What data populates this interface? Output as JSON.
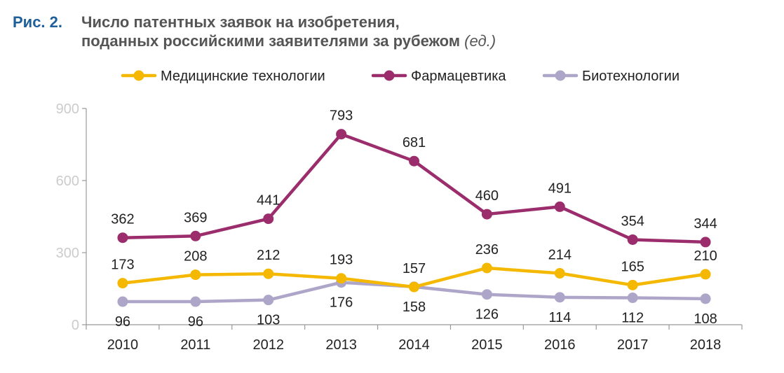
{
  "figure": {
    "number": "Рис. 2.",
    "title_line1": "Число патентных заявок на изобретения,",
    "title_line2": "поданных российскими заявителями за рубежом",
    "unit": "(ед.)"
  },
  "colors": {
    "medical": "#f5b800",
    "pharma": "#9b2d6c",
    "bio": "#aea6c8",
    "axis": "#999999",
    "tick_y": "#cccccc"
  },
  "chart_data": {
    "type": "line",
    "categories": [
      "2010",
      "2011",
      "2012",
      "2013",
      "2014",
      "2015",
      "2016",
      "2017",
      "2018"
    ],
    "ylim": [
      0,
      900
    ],
    "yticks": [
      0,
      300,
      600,
      900
    ],
    "grid": false,
    "legend_position": "top",
    "series": [
      {
        "key": "medical",
        "name": "Медицинские технологии",
        "color": "#f5b800",
        "values": [
          173,
          208,
          212,
          193,
          157,
          236,
          214,
          165,
          210
        ],
        "label_pos": [
          "above",
          "above",
          "above",
          "above",
          "above",
          "above",
          "above",
          "above",
          "above"
        ]
      },
      {
        "key": "pharma",
        "name": "Фармацевтика",
        "color": "#9b2d6c",
        "values": [
          362,
          369,
          441,
          793,
          681,
          460,
          491,
          354,
          344
        ],
        "label_pos": [
          "above",
          "above",
          "above",
          "above",
          "above",
          "above",
          "above",
          "above",
          "above"
        ]
      },
      {
        "key": "bio",
        "name": "Биотехнологии",
        "color": "#aea6c8",
        "values": [
          96,
          96,
          103,
          176,
          158,
          126,
          114,
          112,
          108
        ],
        "label_pos": [
          "below",
          "below",
          "below",
          "below",
          "below",
          "below",
          "below",
          "below",
          "below"
        ]
      }
    ]
  }
}
